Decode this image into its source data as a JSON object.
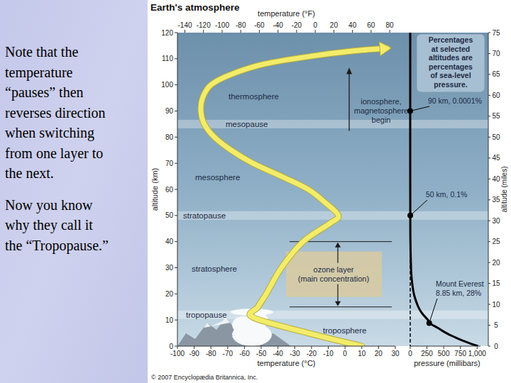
{
  "slide": {
    "paragraphs": [
      [
        "Note that the",
        "temperature",
        "“pauses” then",
        "reverses direction",
        "when switching",
        "from one layer to",
        "the next."
      ],
      [
        "Now you know",
        "why they call it",
        "the “Tropopause.”"
      ]
    ]
  },
  "chart_data": [
    {
      "type": "line",
      "title": "Earth's atmosphere",
      "xlabel": "temperature (°C)",
      "x2label": "temperature (°F)",
      "ylabel": "altitude (km)",
      "y2label": "altitude (miles)",
      "xlim": [
        -100,
        30
      ],
      "xticks": [
        -100,
        -90,
        -80,
        -70,
        -60,
        -50,
        -40,
        -30,
        -20,
        -10,
        0,
        10,
        20,
        30
      ],
      "x2lim": [
        -148,
        86
      ],
      "x2ticks": [
        -140,
        -120,
        -100,
        -80,
        -60,
        -40,
        -20,
        0,
        20,
        40,
        60,
        80
      ],
      "ylim": [
        0,
        120
      ],
      "yticks": [
        0,
        10,
        20,
        30,
        40,
        50,
        60,
        70,
        80,
        90,
        100,
        110,
        120
      ],
      "y2lim": [
        0,
        75
      ],
      "y2ticks": [
        0,
        5,
        10,
        15,
        20,
        25,
        30,
        35,
        40,
        45,
        50,
        55,
        60,
        65,
        70,
        75
      ],
      "series": [
        {
          "color": "#f3ec6a",
          "marker": "arrow",
          "x": [
            10,
            -22,
            -55,
            -52,
            -47,
            -38,
            -25,
            -9,
            -4,
            -12,
            -22,
            -38,
            -55,
            -68,
            -78,
            -84,
            -86,
            -85,
            -80,
            -68,
            -48,
            -20,
            5,
            25
          ],
          "values": [
            0,
            5,
            11,
            15,
            20,
            30,
            40,
            47,
            50,
            55,
            60,
            65,
            70,
            75,
            80,
            85,
            90,
            95,
            100,
            104,
            108,
            111,
            113,
            114
          ]
        }
      ],
      "boundaries": [
        {
          "label": "tropopause",
          "altitude": 12
        },
        {
          "label": "stratopause",
          "altitude": 50
        },
        {
          "label": "mesopause",
          "altitude": 85
        }
      ],
      "layers": [
        "troposphere",
        "stratosphere",
        "mesosphere",
        "thermosphere"
      ],
      "ozone_layer": {
        "label": [
          "ozone layer",
          "(main concentration)"
        ],
        "altitude_range": [
          15,
          40
        ]
      },
      "ionosphere": {
        "label": [
          "ionosphere,",
          "magnetosphere",
          "begin"
        ],
        "altitude": 90
      },
      "credit": "© 2007 Encyclopædia Britannica, Inc."
    },
    {
      "type": "line",
      "xlabel": "pressure (millibars)",
      "xlim": [
        0,
        1050
      ],
      "xticks": [
        0,
        250,
        500,
        750,
        {
          "value": 1000,
          "label": "1,000"
        }
      ],
      "ylim": [
        0,
        120
      ],
      "series": [
        {
          "color": "#000000",
          "x": [
            1013,
            899,
            795,
            701,
            616,
            540,
            472,
            411,
            284,
            265,
            194,
            141,
            104,
            55,
            25,
            12,
            3,
            1,
            0.05,
            0.001,
            0
          ],
          "values": [
            0,
            1,
            2,
            3,
            4,
            5,
            6,
            7,
            8.85,
            10,
            12,
            14,
            16,
            20,
            25,
            30,
            40,
            50,
            70,
            90,
            120
          ]
        }
      ],
      "note": [
        "Percentages",
        "at selected",
        "altitudes are",
        "percentages",
        "of sea-level",
        "pressure."
      ],
      "points": [
        {
          "label": [
            "Mount Everest",
            "8.85 km, 28%"
          ],
          "altitude": 8.85,
          "pressure": 284
        },
        {
          "label": [
            "50 km, 0.1%"
          ],
          "altitude": 50,
          "pressure": 1
        },
        {
          "label": [
            "90 km, 0.0001%"
          ],
          "altitude": 90,
          "pressure": 0.001
        }
      ]
    }
  ]
}
